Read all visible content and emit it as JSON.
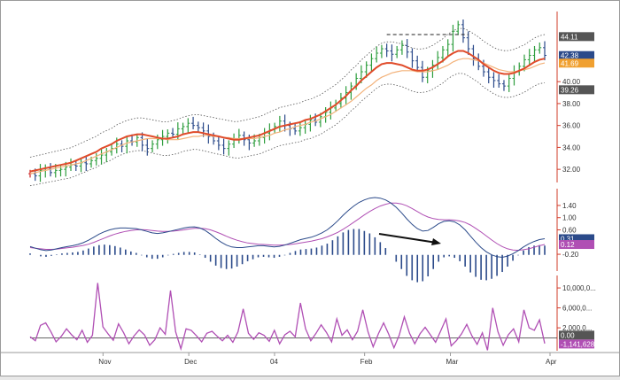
{
  "chart_data": [
    {
      "type": "line",
      "panel": "price",
      "title": "",
      "ylim": [
        30.8,
        46.4
      ],
      "yticks": [
        "32.00",
        "34.00",
        "36.00",
        "38.00",
        "40.00"
      ],
      "x_month_labels": [
        "Nov",
        "Dec",
        "04",
        "Feb",
        "Mar",
        "Apr"
      ],
      "last_value_badges": [
        {
          "label": "44.11",
          "color": "#555555"
        },
        {
          "label": "42.38",
          "color": "#2b4a8a"
        },
        {
          "label": "41.69",
          "color": "#f0a030"
        },
        {
          "label": "39.26",
          "color": "#555555"
        }
      ],
      "series": [
        {
          "kind": "bars",
          "color_up": "#2e9e3e",
          "color_down": "#2b4a8a",
          "color_neutral": "#cc2222",
          "close": [
            31.6,
            31.4,
            31.9,
            32.1,
            31.7,
            31.9,
            32.0,
            32.2,
            32.4,
            32.3,
            32.6,
            32.5,
            32.8,
            33.0,
            33.3,
            33.6,
            33.9,
            34.3,
            34.1,
            34.6,
            34.5,
            34.9,
            34.2,
            33.9,
            34.3,
            34.7,
            35.0,
            35.3,
            35.2,
            35.7,
            35.9,
            36.2,
            36.0,
            35.8,
            35.5,
            35.0,
            34.6,
            34.2,
            33.9,
            34.3,
            34.8,
            35.1,
            34.7,
            34.4,
            34.6,
            34.9,
            35.3,
            35.6,
            35.9,
            36.4,
            36.0,
            35.7,
            35.5,
            35.8,
            36.1,
            36.5,
            36.3,
            36.8,
            37.2,
            37.6,
            38.0,
            38.5,
            39.0,
            39.6,
            40.3,
            40.9,
            41.5,
            42.1,
            42.6,
            43.0,
            42.8,
            42.5,
            42.9,
            43.3,
            42.7,
            41.9,
            41.3,
            40.4,
            41.0,
            41.5,
            42.2,
            42.9,
            43.4,
            44.6,
            45.2,
            44.0,
            43.0,
            42.1,
            41.4,
            40.9,
            40.4,
            40.1,
            39.8,
            39.6,
            40.3,
            40.9,
            41.4,
            42.0,
            42.4,
            42.9,
            43.1,
            42.4
          ]
        },
        {
          "name": "",
          "kind": "line",
          "color": "#e04b2a",
          "values": [
            31.8,
            31.9,
            32.0,
            32.1,
            32.2,
            32.3,
            32.4,
            32.5,
            32.6,
            32.8,
            33.0,
            33.2,
            33.4,
            33.6,
            33.9,
            34.1,
            34.3,
            34.6,
            34.8,
            35.0,
            35.1,
            35.2,
            35.2,
            35.1,
            35.0,
            34.9,
            34.8,
            34.8,
            34.9,
            35.0,
            35.2,
            35.3,
            35.4,
            35.4,
            35.3,
            35.2,
            35.1,
            35.0,
            34.9,
            34.8,
            34.7,
            34.7,
            34.8,
            34.9,
            35.0,
            35.1,
            35.3,
            35.5,
            35.7,
            35.9,
            36.0,
            36.1,
            36.2,
            36.3,
            36.5,
            36.6,
            36.8,
            37.0,
            37.3,
            37.6,
            37.9,
            38.3,
            38.7,
            39.2,
            39.6,
            40.1,
            40.5,
            40.9,
            41.3,
            41.6,
            41.7,
            41.7,
            41.6,
            41.5,
            41.3,
            41.1,
            41.0,
            41.0,
            41.1,
            41.3,
            41.6,
            41.9,
            42.3,
            42.6,
            42.8,
            42.8,
            42.6,
            42.3,
            42.0,
            41.6,
            41.3,
            41.0,
            40.8,
            40.7,
            40.7,
            40.8,
            41.0,
            41.2,
            41.5,
            41.8,
            42.0,
            42.1
          ]
        },
        {
          "name": "",
          "kind": "line",
          "color": "#f3b27a",
          "values": [
            31.6,
            31.7,
            31.8,
            31.9,
            32.0,
            32.1,
            32.2,
            32.3,
            32.4,
            32.5,
            32.6,
            32.8,
            33.0,
            33.2,
            33.4,
            33.6,
            33.8,
            34.0,
            34.2,
            34.4,
            34.5,
            34.6,
            34.7,
            34.8,
            34.8,
            34.8,
            34.8,
            34.7,
            34.7,
            34.7,
            34.8,
            34.9,
            35.0,
            35.0,
            35.1,
            35.1,
            35.0,
            35.0,
            34.9,
            34.9,
            34.8,
            34.8,
            34.8,
            34.8,
            34.8,
            34.9,
            35.0,
            35.1,
            35.3,
            35.4,
            35.6,
            35.7,
            35.9,
            36.0,
            36.1,
            36.3,
            36.4,
            36.6,
            36.8,
            37.0,
            37.3,
            37.6,
            37.9,
            38.2,
            38.6,
            39.0,
            39.4,
            39.7,
            40.1,
            40.4,
            40.6,
            40.8,
            40.9,
            41.0,
            41.0,
            41.0,
            40.9,
            40.9,
            40.9,
            41.0,
            41.1,
            41.3,
            41.5,
            41.8,
            42.0,
            42.1,
            42.1,
            42.0,
            41.9,
            41.7,
            41.5,
            41.3,
            41.1,
            41.0,
            40.9,
            40.9,
            41.0,
            41.1,
            41.2,
            41.4,
            41.6,
            41.7
          ]
        }
      ],
      "resistance_line": {
        "value": 44.3,
        "color": "#222222"
      }
    },
    {
      "type": "line",
      "panel": "macd",
      "ylim": [
        -0.75,
        1.95
      ],
      "yticks": [
        "1.40",
        "1.00",
        "0.60",
        "-0.20"
      ],
      "last_value_badges": [
        {
          "label": "0.31",
          "color": "#2b4a8a"
        },
        {
          "label": "0.12",
          "color": "#b04fb4"
        }
      ],
      "series": [
        {
          "name": "",
          "kind": "line",
          "color": "#2b4a8a",
          "values": [
            0.05,
            0.0,
            -0.05,
            -0.08,
            -0.06,
            -0.02,
            0.02,
            0.05,
            0.08,
            0.12,
            0.18,
            0.26,
            0.36,
            0.46,
            0.54,
            0.6,
            0.64,
            0.66,
            0.66,
            0.65,
            0.64,
            0.6,
            0.55,
            0.5,
            0.48,
            0.5,
            0.54,
            0.58,
            0.62,
            0.66,
            0.69,
            0.7,
            0.66,
            0.58,
            0.46,
            0.32,
            0.2,
            0.1,
            0.04,
            0.02,
            0.02,
            0.04,
            0.06,
            0.08,
            0.08,
            0.06,
            0.04,
            0.06,
            0.1,
            0.16,
            0.22,
            0.28,
            0.32,
            0.36,
            0.42,
            0.5,
            0.6,
            0.74,
            0.9,
            1.08,
            1.24,
            1.38,
            1.5,
            1.58,
            1.64,
            1.66,
            1.64,
            1.58,
            1.48,
            1.34,
            1.16,
            0.96,
            0.78,
            0.64,
            0.56,
            0.58,
            0.68,
            0.8,
            0.88,
            0.9,
            0.86,
            0.76,
            0.6,
            0.4,
            0.2,
            0.02,
            -0.12,
            -0.22,
            -0.28,
            -0.3,
            -0.26,
            -0.18,
            -0.08,
            0.04,
            0.14,
            0.22,
            0.28,
            0.31
          ]
        },
        {
          "name": "",
          "kind": "line",
          "color": "#b04fb4",
          "values": [
            0.02,
            0.0,
            -0.02,
            -0.04,
            -0.04,
            -0.03,
            -0.01,
            0.01,
            0.03,
            0.06,
            0.09,
            0.13,
            0.19,
            0.26,
            0.33,
            0.4,
            0.46,
            0.51,
            0.55,
            0.58,
            0.6,
            0.61,
            0.6,
            0.58,
            0.56,
            0.55,
            0.55,
            0.56,
            0.58,
            0.6,
            0.63,
            0.65,
            0.65,
            0.64,
            0.6,
            0.54,
            0.47,
            0.39,
            0.32,
            0.26,
            0.21,
            0.17,
            0.15,
            0.13,
            0.12,
            0.11,
            0.1,
            0.1,
            0.11,
            0.12,
            0.14,
            0.17,
            0.2,
            0.23,
            0.27,
            0.31,
            0.37,
            0.44,
            0.52,
            0.62,
            0.73,
            0.85,
            0.97,
            1.09,
            1.2,
            1.3,
            1.38,
            1.44,
            1.48,
            1.48,
            1.45,
            1.39,
            1.3,
            1.2,
            1.1,
            1.02,
            0.97,
            0.94,
            0.93,
            0.93,
            0.92,
            0.89,
            0.84,
            0.76,
            0.65,
            0.53,
            0.4,
            0.27,
            0.15,
            0.05,
            -0.02,
            -0.06,
            -0.07,
            -0.05,
            -0.02,
            0.03,
            0.08,
            0.12
          ]
        },
        {
          "name": "",
          "kind": "histogram",
          "color": "#2b4a8a"
        }
      ]
    },
    {
      "type": "line",
      "panel": "volume-oscillator",
      "ylim": [
        -2600000,
        12500000
      ],
      "yticks": [
        "10,000,0...",
        "6,000,0...",
        "2,000,0..."
      ],
      "zero_line": 0,
      "last_value_badges": [
        {
          "label": "0.00",
          "color": "#555555"
        },
        {
          "label": "-1,141,628",
          "color": "#b04fb4"
        }
      ],
      "series": [
        {
          "name": "",
          "kind": "line",
          "color": "#b04fb4",
          "values": [
            200000,
            -600000,
            2500000,
            3000000,
            1200000,
            -800000,
            300000,
            1800000,
            600000,
            -400000,
            1500000,
            -900000,
            500000,
            11000000,
            2200000,
            800000,
            -500000,
            2800000,
            1000000,
            -1200000,
            400000,
            1600000,
            600000,
            -1500000,
            -400000,
            2000000,
            700000,
            9500000,
            1200000,
            -2200000,
            1800000,
            1500000,
            400000,
            -800000,
            900000,
            1300000,
            300000,
            -600000,
            500000,
            -900000,
            1200000,
            5800000,
            900000,
            -300000,
            1000000,
            500000,
            -700000,
            1500000,
            -1200000,
            600000,
            1300000,
            200000,
            7000000,
            1800000,
            -600000,
            900000,
            2600000,
            1100000,
            -800000,
            3800000,
            500000,
            1600000,
            -400000,
            1300000,
            5600000,
            1200000,
            -1800000,
            800000,
            3000000,
            700000,
            -2000000,
            500000,
            4200000,
            900000,
            -1200000,
            800000,
            2100000,
            600000,
            -900000,
            1400000,
            3800000,
            -1600000,
            -600000,
            800000,
            2700000,
            400000,
            -1300000,
            1000000,
            -2500000,
            6000000,
            1200000,
            -1500000,
            600000,
            1800000,
            -800000,
            5600000,
            2000000,
            1500000,
            3600000,
            -1141628
          ]
        }
      ]
    }
  ]
}
